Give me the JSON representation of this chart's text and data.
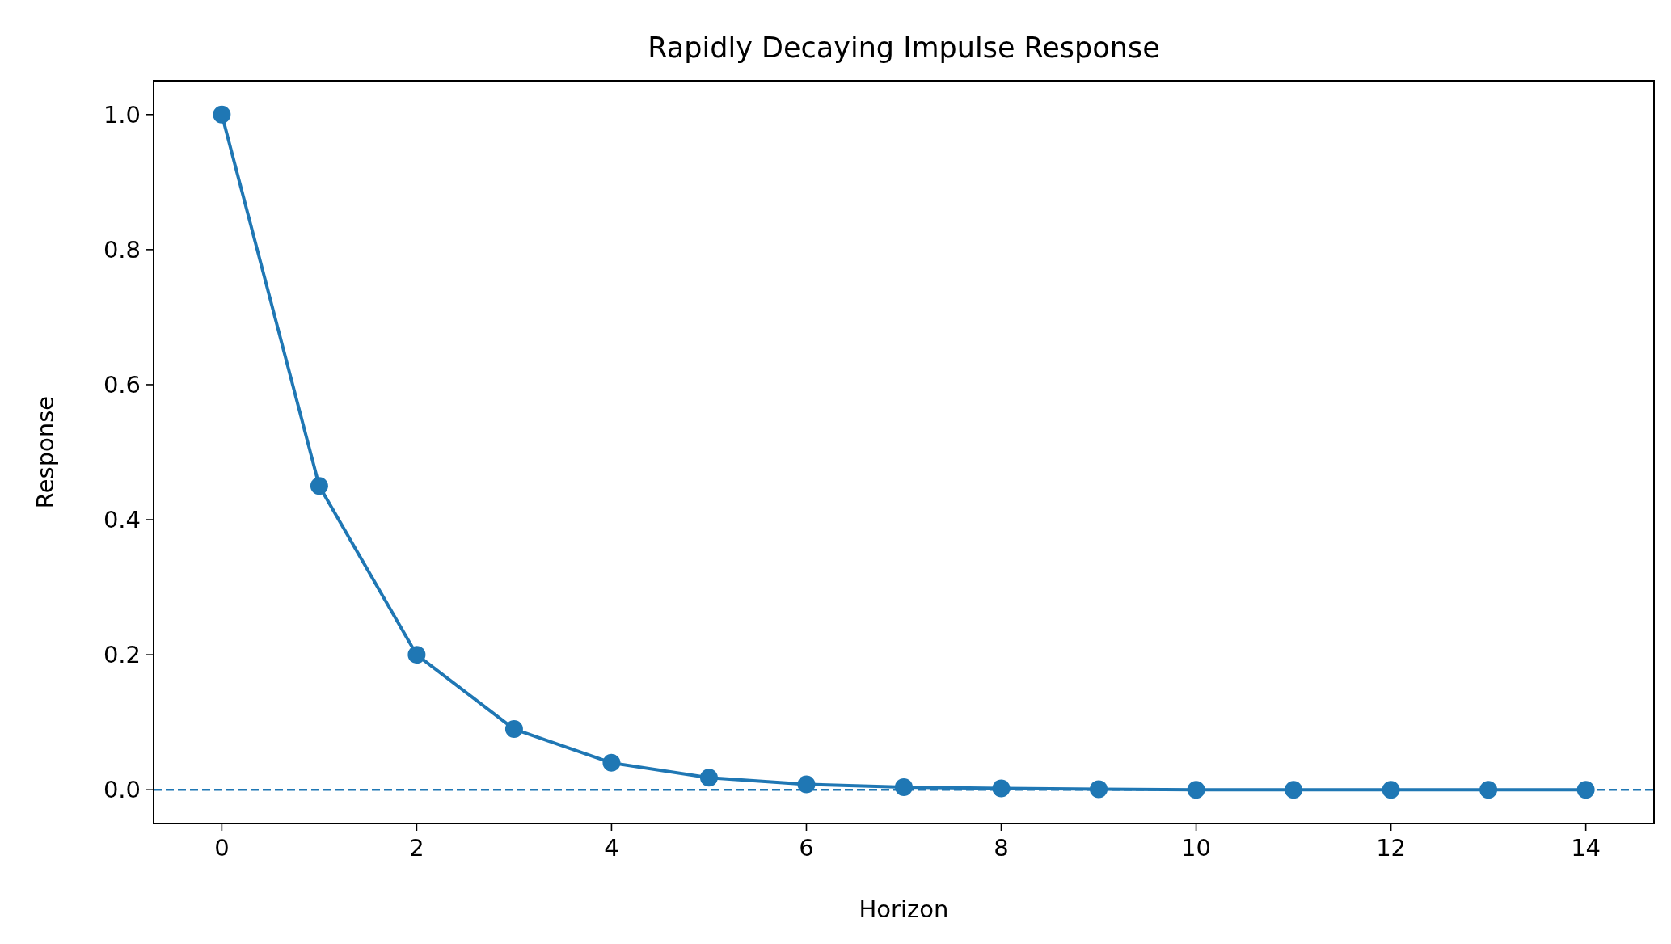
{
  "chart_data": {
    "type": "line",
    "title": "Rapidly Decaying Impulse Response",
    "xlabel": "Horizon",
    "ylabel": "Response",
    "x": [
      0,
      1,
      2,
      3,
      4,
      5,
      6,
      7,
      8,
      9,
      10,
      11,
      12,
      13,
      14
    ],
    "series": [
      {
        "color": "#1f77b4",
        "values": [
          1,
          0.45,
          0.2,
          0.09,
          0.04,
          0.018,
          0.008,
          0.004,
          0.002,
          0.001,
          0,
          0,
          0,
          0,
          0
        ]
      }
    ],
    "xlim": [
      -0.7,
      14.7
    ],
    "ylim": [
      -0.05,
      1.05
    ],
    "xticks": [
      0,
      2,
      4,
      6,
      8,
      10,
      12,
      14
    ],
    "yticks": [
      {
        "value": 0,
        "label": "0.0"
      },
      {
        "value": 0.2,
        "label": "0.2"
      },
      {
        "value": 0.4,
        "label": "0.4"
      },
      {
        "value": 0.6,
        "label": "0.6"
      },
      {
        "value": 0.8,
        "label": "0.8"
      },
      {
        "value": 1,
        "label": "1.0"
      }
    ],
    "ref_lines": [
      {
        "axis": "y",
        "value": 0,
        "color": "#1f77b4",
        "line_style": "dashed"
      }
    ],
    "marker": "circle",
    "line_style": "solid",
    "grid": false
  }
}
